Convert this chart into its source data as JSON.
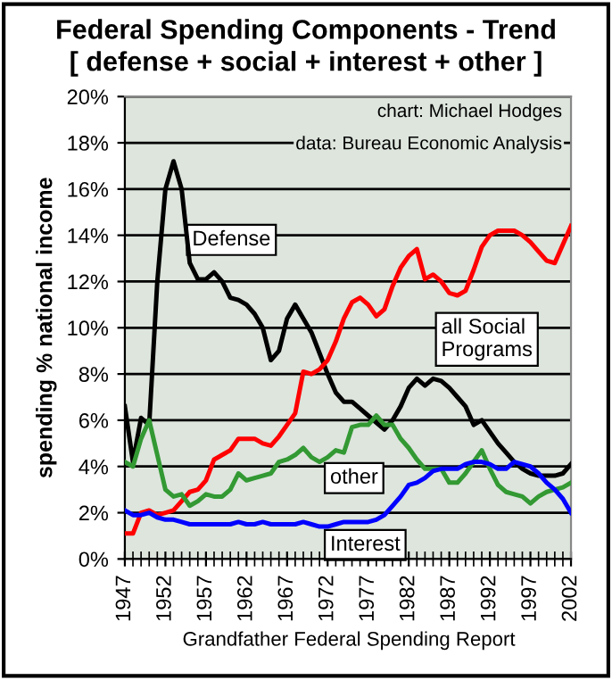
{
  "chart_data": {
    "type": "line",
    "title": "Federal Spending Components - Trend",
    "subtitle": "[ defense + social + interest + other ]",
    "ylabel": "spending % national income",
    "x": [
      1947,
      1948,
      1949,
      1950,
      1951,
      1952,
      1953,
      1954,
      1955,
      1956,
      1957,
      1958,
      1959,
      1960,
      1961,
      1962,
      1963,
      1964,
      1965,
      1966,
      1967,
      1968,
      1969,
      1970,
      1971,
      1972,
      1973,
      1974,
      1975,
      1976,
      1977,
      1978,
      1979,
      1980,
      1981,
      1982,
      1983,
      1984,
      1985,
      1986,
      1987,
      1988,
      1989,
      1990,
      1991,
      1992,
      1993,
      1994,
      1995,
      1996,
      1997,
      1998,
      1999,
      2000,
      2001,
      2002
    ],
    "series": [
      {
        "name": "Defense",
        "color": "#000000",
        "values": [
          6.6,
          4.2,
          6.1,
          5.8,
          12.0,
          16.0,
          17.2,
          16.0,
          12.8,
          12.1,
          12.1,
          12.4,
          12.0,
          11.3,
          11.2,
          11.0,
          10.6,
          10.0,
          8.6,
          9.0,
          10.4,
          11.0,
          10.4,
          9.8,
          8.9,
          8.0,
          7.2,
          6.8,
          6.8,
          6.5,
          6.2,
          5.9,
          5.6,
          6.0,
          6.6,
          7.4,
          7.8,
          7.5,
          7.8,
          7.7,
          7.4,
          7.0,
          6.6,
          5.8,
          6.0,
          5.5,
          5.0,
          4.6,
          4.2,
          3.9,
          3.7,
          3.6,
          3.6,
          3.6,
          3.7,
          4.1
        ]
      },
      {
        "name": "all Social Programs",
        "color": "#ff0000",
        "values": [
          1.1,
          1.1,
          2.0,
          2.1,
          1.9,
          2.0,
          2.1,
          2.5,
          2.9,
          3.0,
          3.4,
          4.3,
          4.5,
          4.7,
          5.2,
          5.2,
          5.2,
          5.0,
          4.9,
          5.3,
          5.8,
          6.3,
          8.1,
          8.0,
          8.2,
          8.6,
          9.4,
          10.4,
          11.1,
          11.3,
          11.0,
          10.5,
          10.8,
          11.8,
          12.6,
          13.1,
          13.4,
          12.1,
          12.3,
          12.0,
          11.5,
          11.4,
          11.6,
          12.5,
          13.5,
          14.0,
          14.2,
          14.2,
          14.2,
          14.0,
          13.7,
          13.3,
          12.9,
          12.8,
          13.6,
          14.4
        ]
      },
      {
        "name": "other",
        "color": "#339933",
        "values": [
          4.2,
          4.0,
          5.2,
          6.0,
          4.5,
          3.0,
          2.7,
          2.8,
          2.3,
          2.5,
          2.8,
          2.7,
          2.7,
          3.0,
          3.7,
          3.4,
          3.5,
          3.6,
          3.7,
          4.2,
          4.3,
          4.5,
          4.8,
          4.4,
          4.2,
          4.4,
          4.7,
          4.6,
          5.7,
          5.8,
          5.8,
          6.2,
          5.8,
          5.8,
          5.2,
          4.8,
          4.3,
          3.9,
          3.9,
          3.9,
          3.3,
          3.3,
          3.7,
          4.2,
          4.7,
          3.9,
          3.2,
          2.9,
          2.8,
          2.7,
          2.4,
          2.7,
          2.9,
          3.0,
          3.1,
          3.3
        ]
      },
      {
        "name": "Interest",
        "color": "#0000ff",
        "values": [
          2.1,
          1.9,
          1.9,
          2.0,
          1.8,
          1.7,
          1.7,
          1.6,
          1.5,
          1.5,
          1.5,
          1.5,
          1.5,
          1.5,
          1.6,
          1.5,
          1.5,
          1.6,
          1.5,
          1.5,
          1.5,
          1.5,
          1.6,
          1.5,
          1.4,
          1.4,
          1.5,
          1.6,
          1.6,
          1.6,
          1.6,
          1.7,
          1.9,
          2.3,
          2.7,
          3.2,
          3.3,
          3.5,
          3.8,
          3.9,
          3.9,
          3.9,
          4.1,
          4.2,
          4.2,
          4.1,
          3.9,
          3.9,
          4.2,
          4.1,
          4.0,
          3.7,
          3.3,
          3.0,
          2.6,
          2.0
        ]
      }
    ],
    "xlim": [
      1947,
      2002
    ],
    "xticks": [
      1947,
      1952,
      1957,
      1962,
      1967,
      1972,
      1977,
      1982,
      1987,
      1992,
      1997,
      2002
    ],
    "ylim": [
      0,
      20
    ],
    "yticks": [
      {
        "value": 0,
        "label": "0%"
      },
      {
        "value": 2,
        "label": "2%"
      },
      {
        "value": 4,
        "label": "4%"
      },
      {
        "value": 6,
        "label": "6%"
      },
      {
        "value": 8,
        "label": "8%"
      },
      {
        "value": 10,
        "label": "10%"
      },
      {
        "value": 12,
        "label": "12%"
      },
      {
        "value": 14,
        "label": "14%"
      },
      {
        "value": 16,
        "label": "16%"
      },
      {
        "value": 18,
        "label": "18%"
      },
      {
        "value": 20,
        "label": "20%"
      }
    ],
    "grid": "y",
    "legend": false,
    "marker": "none",
    "line_style": "solid",
    "annotations": [
      "chart: Michael Hodges",
      "data: Bureau Economic Analysis",
      "Grandfather Federal Spending Report"
    ]
  }
}
